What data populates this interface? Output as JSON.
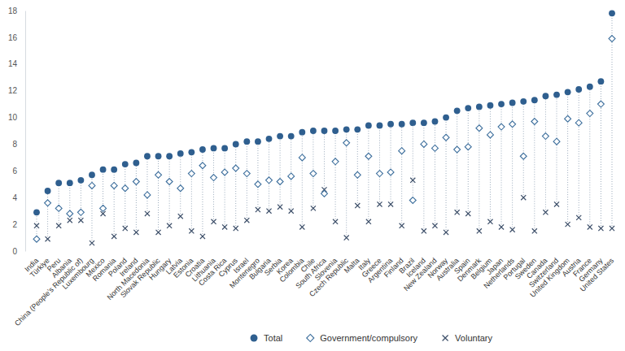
{
  "chart_data": {
    "type": "dot",
    "categories": [
      "India",
      "Türkiye",
      "Peru",
      "Albania",
      "China (People's Republic of)",
      "Luxembourg",
      "Mexico",
      "Romania",
      "Poland",
      "Ireland",
      "North Macedonia",
      "Slovak Republic",
      "Hungary",
      "Latvia",
      "Estonia",
      "Croatia",
      "Lithuania",
      "Costa Rica",
      "Cyprus",
      "Israel",
      "Montenegro",
      "Bulgaria",
      "Serbia",
      "Korea",
      "Colombia",
      "Chile",
      "South Africa",
      "Slovenia",
      "Czech Republic",
      "Malta",
      "Italy",
      "Greece",
      "Argentina",
      "Finland",
      "Brazil",
      "Iceland",
      "New Zealand",
      "Norway",
      "Australia",
      "Spain",
      "Denmark",
      "Belgium",
      "Japan",
      "Netherlands",
      "Portugal",
      "Sweden",
      "Canada",
      "Switzerland",
      "United Kingdom",
      "Austria",
      "France",
      "Germany",
      "United States"
    ],
    "series": [
      {
        "name": "Total",
        "color": "#2f5f8f",
        "marker": "circle",
        "values": [
          2.9,
          4.5,
          5.1,
          5.1,
          5.3,
          5.7,
          6.1,
          6.1,
          6.5,
          6.6,
          7.1,
          7.1,
          7.1,
          7.3,
          7.4,
          7.6,
          7.7,
          7.7,
          8.0,
          8.2,
          8.2,
          8.4,
          8.6,
          8.6,
          8.9,
          9.0,
          9.0,
          9.0,
          9.1,
          9.1,
          9.4,
          9.4,
          9.5,
          9.5,
          9.6,
          9.6,
          9.7,
          10.0,
          10.5,
          10.7,
          10.8,
          10.9,
          11.0,
          11.1,
          11.2,
          11.3,
          11.6,
          11.7,
          11.9,
          12.1,
          12.3,
          12.7,
          17.8
        ]
      },
      {
        "name": "Government/compulsory",
        "color": "#3c6e9c",
        "marker": "diamond-open",
        "values": [
          0.9,
          3.6,
          3.2,
          2.8,
          2.9,
          4.9,
          3.2,
          4.9,
          4.7,
          5.2,
          4.2,
          5.7,
          5.2,
          4.7,
          5.8,
          6.4,
          5.5,
          5.9,
          6.2,
          5.8,
          5.0,
          5.3,
          5.2,
          5.6,
          7.0,
          5.8,
          4.3,
          6.7,
          8.1,
          5.7,
          7.1,
          5.8,
          5.9,
          7.5,
          3.8,
          8.0,
          7.7,
          8.5,
          7.6,
          7.8,
          9.2,
          8.7,
          9.3,
          9.5,
          7.1,
          9.7,
          8.6,
          8.2,
          9.9,
          9.6,
          10.3,
          11.0,
          15.9
        ]
      },
      {
        "name": "Voluntary",
        "color": "#3d4f69",
        "marker": "x",
        "values": [
          1.9,
          0.9,
          1.9,
          2.3,
          2.3,
          0.6,
          2.8,
          1.1,
          1.7,
          1.4,
          2.8,
          1.4,
          1.9,
          2.6,
          1.5,
          1.1,
          2.2,
          1.8,
          1.7,
          2.3,
          3.1,
          3.0,
          3.3,
          3.0,
          1.8,
          3.2,
          4.6,
          2.2,
          1.0,
          3.4,
          2.2,
          3.5,
          3.5,
          1.9,
          5.3,
          1.5,
          1.9,
          1.4,
          2.9,
          2.8,
          1.5,
          2.2,
          1.8,
          1.6,
          4.0,
          1.5,
          2.9,
          3.5,
          2.0,
          2.5,
          1.8,
          1.7,
          1.7
        ]
      }
    ],
    "ylim": [
      0,
      18
    ],
    "yticks": [
      0,
      2,
      4,
      6,
      8,
      10,
      12,
      14,
      16,
      18
    ],
    "legend": "bottom"
  }
}
